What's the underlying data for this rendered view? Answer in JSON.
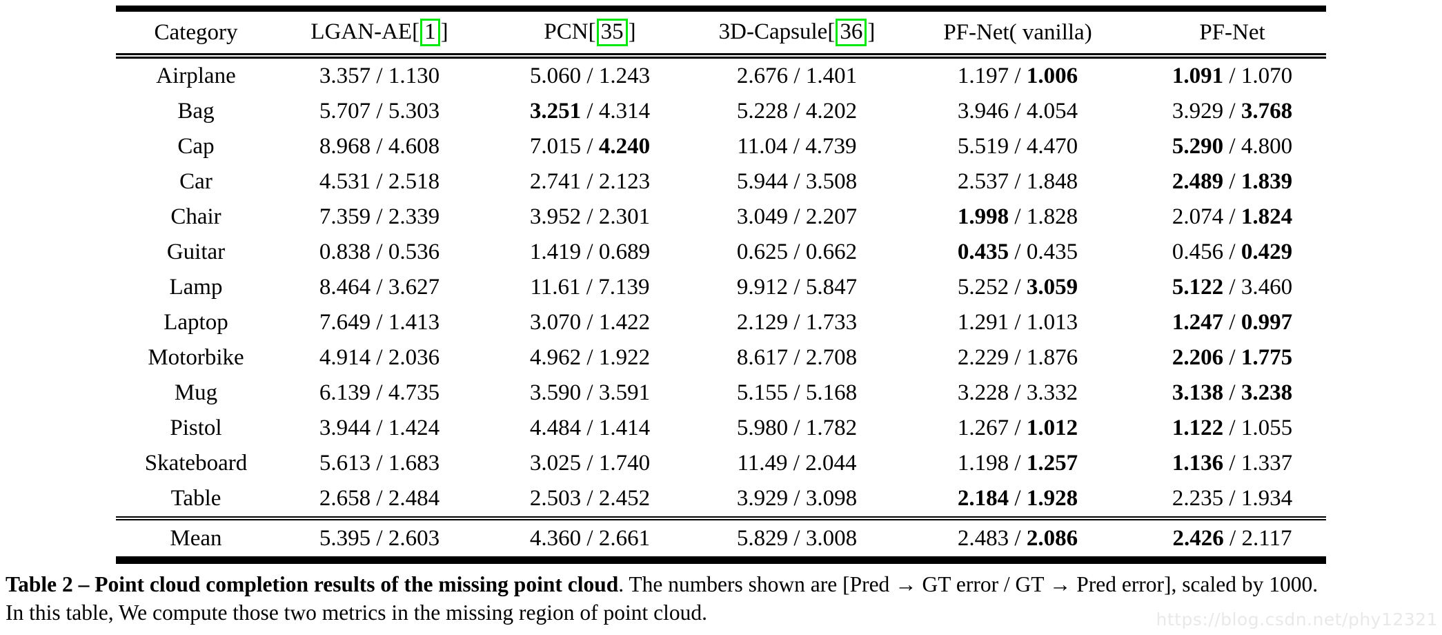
{
  "header": {
    "cite_box_color": "#00e80b",
    "columns": [
      {
        "label": "Category"
      },
      {
        "label": "LGAN-AE",
        "cite": "1"
      },
      {
        "label": "PCN",
        "cite": "35"
      },
      {
        "label": "3D-Capsule",
        "cite": "36"
      },
      {
        "label": "PF-Net( vanilla)"
      },
      {
        "label": "PF-Net"
      }
    ]
  },
  "table": {
    "value_format": "pred_to_gt / gt_to_pred",
    "rows": [
      {
        "category": "Airplane",
        "cells": [
          [
            "3.357",
            "1.130",
            "none"
          ],
          [
            "5.060",
            "1.243",
            "none"
          ],
          [
            "2.676",
            "1.401",
            "none"
          ],
          [
            "1.197",
            "1.006",
            "gt"
          ],
          [
            "1.091",
            "1.070",
            "pred"
          ]
        ]
      },
      {
        "category": "Bag",
        "cells": [
          [
            "5.707",
            "5.303",
            "none"
          ],
          [
            "3.251",
            "4.314",
            "pred"
          ],
          [
            "5.228",
            "4.202",
            "none"
          ],
          [
            "3.946",
            "4.054",
            "none"
          ],
          [
            "3.929",
            "3.768",
            "gt"
          ]
        ]
      },
      {
        "category": "Cap",
        "cells": [
          [
            "8.968",
            "4.608",
            "none"
          ],
          [
            "7.015",
            "4.240",
            "gt"
          ],
          [
            "11.04",
            "4.739",
            "none"
          ],
          [
            "5.519",
            "4.470",
            "none"
          ],
          [
            "5.290",
            "4.800",
            "pred"
          ]
        ]
      },
      {
        "category": "Car",
        "cells": [
          [
            "4.531",
            "2.518",
            "none"
          ],
          [
            "2.741",
            "2.123",
            "none"
          ],
          [
            "5.944",
            "3.508",
            "none"
          ],
          [
            "2.537",
            "1.848",
            "none"
          ],
          [
            "2.489",
            "1.839",
            "both"
          ]
        ]
      },
      {
        "category": "Chair",
        "cells": [
          [
            "7.359",
            "2.339",
            "none"
          ],
          [
            "3.952",
            "2.301",
            "none"
          ],
          [
            "3.049",
            "2.207",
            "none"
          ],
          [
            "1.998",
            "1.828",
            "pred"
          ],
          [
            "2.074",
            "1.824",
            "gt"
          ]
        ]
      },
      {
        "category": "Guitar",
        "cells": [
          [
            "0.838",
            "0.536",
            "none"
          ],
          [
            "1.419",
            "0.689",
            "none"
          ],
          [
            "0.625",
            "0.662",
            "none"
          ],
          [
            "0.435",
            "0.435",
            "pred"
          ],
          [
            "0.456",
            "0.429",
            "gt"
          ]
        ]
      },
      {
        "category": "Lamp",
        "cells": [
          [
            "8.464",
            "3.627",
            "none"
          ],
          [
            "11.61",
            "7.139",
            "none"
          ],
          [
            "9.912",
            "5.847",
            "none"
          ],
          [
            "5.252",
            "3.059",
            "gt"
          ],
          [
            "5.122",
            "3.460",
            "pred"
          ]
        ]
      },
      {
        "category": "Laptop",
        "cells": [
          [
            "7.649",
            "1.413",
            "none"
          ],
          [
            "3.070",
            "1.422",
            "none"
          ],
          [
            "2.129",
            "1.733",
            "none"
          ],
          [
            "1.291",
            "1.013",
            "none"
          ],
          [
            "1.247",
            "0.997",
            "both"
          ]
        ]
      },
      {
        "category": "Motorbike",
        "cells": [
          [
            "4.914",
            "2.036",
            "none"
          ],
          [
            "4.962",
            "1.922",
            "none"
          ],
          [
            "8.617",
            "2.708",
            "none"
          ],
          [
            "2.229",
            "1.876",
            "none"
          ],
          [
            "2.206",
            "1.775",
            "both"
          ]
        ]
      },
      {
        "category": "Mug",
        "cells": [
          [
            "6.139",
            "4.735",
            "none"
          ],
          [
            "3.590",
            "3.591",
            "none"
          ],
          [
            "5.155",
            "5.168",
            "none"
          ],
          [
            "3.228",
            "3.332",
            "none"
          ],
          [
            "3.138",
            "3.238",
            "both"
          ]
        ]
      },
      {
        "category": "Pistol",
        "cells": [
          [
            "3.944",
            "1.424",
            "none"
          ],
          [
            "4.484",
            "1.414",
            "none"
          ],
          [
            "5.980",
            "1.782",
            "none"
          ],
          [
            "1.267",
            "1.012",
            "gt"
          ],
          [
            "1.122",
            "1.055",
            "pred"
          ]
        ]
      },
      {
        "category": "Skateboard",
        "cells": [
          [
            "5.613",
            "1.683",
            "none"
          ],
          [
            "3.025",
            "1.740",
            "none"
          ],
          [
            "11.49",
            "2.044",
            "none"
          ],
          [
            "1.198",
            "1.257",
            "gt"
          ],
          [
            "1.136",
            "1.337",
            "pred"
          ]
        ]
      },
      {
        "category": "Table",
        "cells": [
          [
            "2.658",
            "2.484",
            "none"
          ],
          [
            "2.503",
            "2.452",
            "none"
          ],
          [
            "3.929",
            "3.098",
            "none"
          ],
          [
            "2.184",
            "1.928",
            "both"
          ],
          [
            "2.235",
            "1.934",
            "none"
          ]
        ]
      },
      {
        "category": "Mean",
        "is_mean": true,
        "cells": [
          [
            "5.395",
            "2.603",
            "none"
          ],
          [
            "4.360",
            "2.661",
            "none"
          ],
          [
            "5.829",
            "3.008",
            "none"
          ],
          [
            "2.483",
            "2.086",
            "gt"
          ],
          [
            "2.426",
            "2.117",
            "pred"
          ]
        ]
      }
    ]
  },
  "caption": {
    "bold_text": "Table 2 – Point cloud completion results of the missing point cloud",
    "line1_rest": ". The numbers shown are [Pred → GT error / GT → Pred error], scaled by 1000.",
    "line2": "In this table, We compute those two metrics in the missing region of point cloud."
  },
  "watermark": "https://blog.csdn.net/phy12321"
}
